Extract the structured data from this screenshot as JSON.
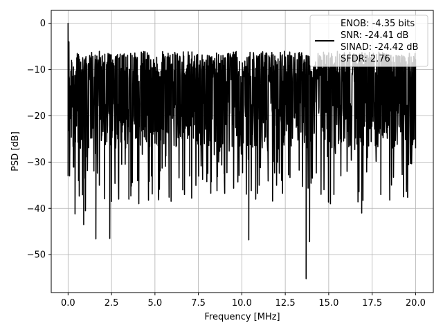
{
  "chart_data": {
    "type": "line",
    "title": "",
    "xlabel": "Frequency [MHz]",
    "ylabel": "PSD [dB]",
    "xlim": [
      -0.97,
      21.02
    ],
    "ylim": [
      -58.2,
      2.8
    ],
    "xticks": [
      0.0,
      2.5,
      5.0,
      7.5,
      10.0,
      12.5,
      15.0,
      17.5,
      20.0
    ],
    "xtick_labels": [
      "0.0",
      "2.5",
      "5.0",
      "7.5",
      "10.0",
      "12.5",
      "15.0",
      "17.5",
      "20.0"
    ],
    "yticks": [
      0,
      -10,
      -20,
      -30,
      -40,
      -50
    ],
    "ytick_labels": [
      "0",
      "−10",
      "−20",
      "−30",
      "−40",
      "−50"
    ],
    "grid": true,
    "legend_position": "top-right",
    "legend": [
      "ENOB: -4.35 bits",
      "SNR: -24.41 dB",
      "SINAD: -24.42 dB",
      "SFDR: 2.76"
    ],
    "series": [
      {
        "color": "#000000",
        "x_range": [
          0,
          20
        ],
        "description_points": [
          [
            0.0,
            0.0
          ],
          [
            0.05,
            -4.0
          ],
          [
            0.1,
            -17.0
          ],
          [
            0.2,
            -10.0
          ],
          [
            0.3,
            -31.0
          ],
          [
            0.4,
            -41.2
          ],
          [
            0.6,
            -34.0
          ],
          [
            0.9,
            -43.5
          ],
          [
            1.0,
            -40.5
          ],
          [
            1.6,
            -46.6
          ],
          [
            1.8,
            -35.0
          ],
          [
            2.4,
            -46.5
          ],
          [
            3.5,
            -38.0
          ],
          [
            4.0,
            -34.0
          ],
          [
            4.8,
            -33.0
          ],
          [
            5.2,
            -37.0
          ],
          [
            6.6,
            -36.0
          ],
          [
            6.7,
            -37.0
          ],
          [
            7.0,
            -33.0
          ],
          [
            9.0,
            -34.0
          ],
          [
            10.4,
            -46.8
          ],
          [
            10.8,
            -38.0
          ],
          [
            11.0,
            -35.0
          ],
          [
            12.0,
            -35.0
          ],
          [
            13.7,
            -55.2
          ],
          [
            13.9,
            -47.2
          ],
          [
            15.1,
            -39.0
          ],
          [
            15.3,
            -37.0
          ],
          [
            16.9,
            -41.0
          ],
          [
            18.0,
            -37.0
          ],
          [
            19.3,
            -37.5
          ],
          [
            20.0,
            -27.0
          ]
        ],
        "upper_envelope_db": -6.0,
        "band_center_db": -17.0
      }
    ]
  }
}
